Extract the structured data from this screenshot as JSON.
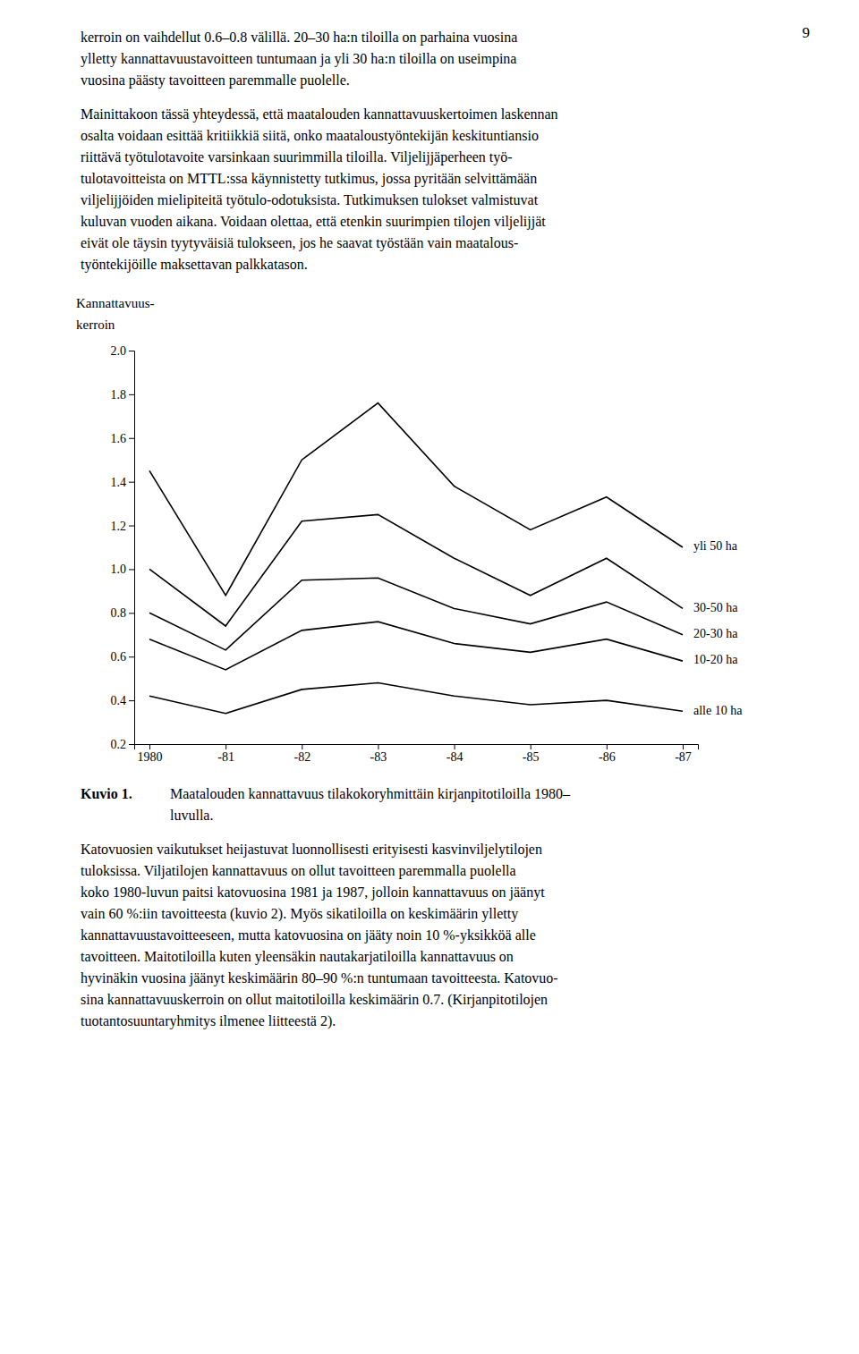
{
  "page": {
    "page_number": "9",
    "text_above": [
      [
        "kerroin on vaihdellut 0.6–0.8 välillä. 20–30 ha:n tiloilla on parhaina vuosina",
        "ylletty kannattavuustavoitteen tuntumaan ja yli 30 ha:n tiloilla on useimpina",
        "vuosina päästy tavoitteen paremmalle puolelle."
      ],
      [
        "Mainittakoon tässä yhteydessä, että maatalouden kannattavuuskertoimen laskennan",
        "osalta voidaan esittää kritiikkiä siitä, onko maataloustyöntekijän keskituntiansio",
        "riittävä työtulotavoite varsinkaan suurimmilla tiloilla. Viljelijjäperheen työ-",
        "tulotavoitteista on MTTL:ssa käynnistetty tutkimus, jossa pyritään selvittämään",
        "viljelijjöiden mielipiteitä työtulo-odotuksista. Tutkimuksen tulokset valmistuvat",
        "kuluvan vuoden aikana. Voidaan olettaa, että etenkin suurimpien tilojen viljelijjät",
        "eivät ole täysin tyytyväisiä tulokseen, jos he saavat työstään vain maatalous-",
        "työntekijöille maksettavan palkkatason."
      ]
    ],
    "caption_label": "Kuvio 1.",
    "caption_text": [
      "Maatalouden kannattavuus tilakokoryhmittäin kirjanpitotiloilla 1980–",
      "luvulla."
    ],
    "text_below": [
      "Katovuosien vaikutukset heijastuvat luonnollisesti erityisesti kasvinviljelytilojen",
      "tuloksissa. Viljatilojen kannattavuus on ollut tavoitteen paremmalla puolella",
      "koko 1980-luvun paitsi katovuosina 1981 ja 1987, jolloin kannattavuus on jäänyt",
      "vain 60 %:iin tavoitteesta (kuvio 2). Myös sikatiloilla on keskimäärin ylletty",
      "kannattavuustavoitteeseen, mutta katovuosina on jääty noin 10 %-yksikköä alle",
      "tavoitteen. Maitotiloilla kuten yleensäkin nautakarjatiloilla kannattavuus on",
      "hyvinäkin vuosina jäänyt keskimäärin 80–90 %:n tuntumaan tavoitteesta. Katovuo-",
      "sina kannattavuuskerroin on ollut maitotiloilla keskimäärin 0.7. (Kirjanpitotilojen",
      "tuotantosuuntaryhmitys ilmenee liitteestä 2)."
    ]
  },
  "chart_data": {
    "type": "line",
    "y_label": [
      "Kannattavuus-",
      "kerroin"
    ],
    "categories": [
      "1980",
      "-81",
      "-82",
      "-83",
      "-84",
      "-85",
      "-86",
      "-87"
    ],
    "ylim": [
      0.2,
      2.0
    ],
    "yticks": [
      0.2,
      0.4,
      0.6,
      0.8,
      {
        "value": 1.0,
        "label": "1.0"
      },
      1.2,
      1.4,
      1.6,
      1.8,
      {
        "value": 2.0,
        "label": "2.0"
      }
    ],
    "grid": false,
    "series": [
      {
        "name": "yli 50 ha",
        "color": "#000000",
        "values": [
          1.45,
          0.88,
          1.5,
          1.76,
          1.38,
          1.18,
          1.33,
          1.1
        ]
      },
      {
        "name": "30-50 ha",
        "color": "#000000",
        "values": [
          1.0,
          0.74,
          1.22,
          1.25,
          1.05,
          0.88,
          1.05,
          0.82
        ]
      },
      {
        "name": "20-30 ha",
        "color": "#000000",
        "values": [
          0.8,
          0.63,
          0.95,
          0.96,
          0.82,
          0.75,
          0.85,
          0.7
        ]
      },
      {
        "name": "10-20 ha",
        "color": "#000000",
        "values": [
          0.68,
          0.54,
          0.72,
          0.76,
          0.66,
          0.62,
          0.68,
          0.58
        ]
      },
      {
        "name": "alle 10 ha",
        "color": "#000000",
        "values": [
          0.42,
          0.34,
          0.45,
          0.48,
          0.42,
          0.38,
          0.4,
          0.35
        ]
      }
    ]
  }
}
